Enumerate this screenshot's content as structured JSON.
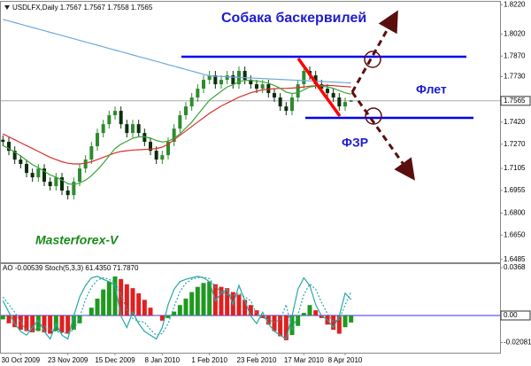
{
  "chart_data": [
    {
      "type": "candlestick",
      "title": "USDLFX,Daily  1.7567 1.7567 1.7558 1.7565",
      "annotations": [
        "Собака баскервилей",
        "Флет",
        "ФЗР",
        "Masterforex-V"
      ],
      "categories": [
        null,
        null,
        null,
        "30 Oct 2009",
        null,
        null,
        null,
        null,
        null,
        null,
        null,
        "23 Nov 2009",
        null,
        null,
        null,
        null,
        null,
        null,
        null,
        "15 Dec 2009",
        null,
        null,
        null,
        null,
        null,
        null,
        null,
        "8 Jan 2010",
        null,
        null,
        null,
        null,
        null,
        null,
        null,
        "1 Feb 2010",
        null,
        null,
        null,
        null,
        null,
        null,
        null,
        "23 Feb 2010",
        null,
        null,
        null,
        null,
        null,
        null,
        null,
        "17 Mar 2010",
        null,
        null,
        null,
        null,
        null,
        null,
        "8 Apr 2010",
        null
      ],
      "open": [
        1.73,
        1.7286,
        1.7225,
        1.7165,
        1.7135,
        1.7074,
        1.7044,
        1.7104,
        1.7014,
        1.6984,
        1.7044,
        1.6954,
        1.6923,
        1.7014,
        1.7104,
        1.7165,
        1.7256,
        1.7346,
        1.7406,
        1.7467,
        1.7497,
        1.7406,
        1.7346,
        1.7406,
        1.7346,
        1.7286,
        1.7225,
        1.7165,
        1.7195,
        1.7286,
        1.7376,
        1.7467,
        1.7527,
        1.7588,
        1.7648,
        1.7708,
        1.7739,
        1.7678,
        1.7708,
        1.7739,
        1.7678,
        1.7769,
        1.7708,
        1.7678,
        1.7648,
        1.7678,
        1.7618,
        1.7588,
        1.7527,
        1.7497,
        1.7588,
        1.7678,
        1.7769,
        1.7739,
        1.7678,
        1.7648,
        1.7618,
        1.7588,
        1.7527,
        1.7567
      ],
      "high": [
        1.733,
        1.7316,
        1.7255,
        1.7195,
        1.7165,
        1.7104,
        1.7134,
        1.7134,
        1.7044,
        1.7074,
        1.7074,
        1.6984,
        1.7044,
        1.7134,
        1.7195,
        1.7286,
        1.7376,
        1.7436,
        1.7497,
        1.7527,
        1.7527,
        1.7436,
        1.7436,
        1.7436,
        1.7376,
        1.7316,
        1.7255,
        1.7225,
        1.7316,
        1.7406,
        1.7497,
        1.7557,
        1.7618,
        1.7678,
        1.7738,
        1.7769,
        1.7769,
        1.7738,
        1.7769,
        1.7769,
        1.7799,
        1.7799,
        1.7738,
        1.7708,
        1.7708,
        1.7708,
        1.7648,
        1.7618,
        1.7557,
        1.7618,
        1.7708,
        1.7799,
        1.7799,
        1.7769,
        1.7708,
        1.7678,
        1.7648,
        1.7618,
        1.7587,
        1.7567
      ],
      "low": [
        1.7256,
        1.7195,
        1.7135,
        1.7105,
        1.7044,
        1.7014,
        1.7014,
        1.6984,
        1.6954,
        1.6954,
        1.6924,
        1.6893,
        1.6893,
        1.6984,
        1.7074,
        1.7135,
        1.7226,
        1.7316,
        1.7376,
        1.7437,
        1.7376,
        1.7316,
        1.7316,
        1.7316,
        1.7256,
        1.7195,
        1.7135,
        1.7135,
        1.7165,
        1.7256,
        1.7346,
        1.7437,
        1.7497,
        1.7558,
        1.7618,
        1.7678,
        1.7648,
        1.7648,
        1.7678,
        1.7648,
        1.7648,
        1.7678,
        1.7648,
        1.7618,
        1.7618,
        1.7588,
        1.7558,
        1.7497,
        1.7467,
        1.7467,
        1.7558,
        1.7648,
        1.7709,
        1.7648,
        1.7618,
        1.7588,
        1.7558,
        1.7497,
        1.7497,
        1.7558
      ],
      "close": [
        1.7286,
        1.7225,
        1.7165,
        1.7135,
        1.7074,
        1.7044,
        1.7104,
        1.7014,
        1.6984,
        1.7044,
        1.6954,
        1.6923,
        1.7014,
        1.7104,
        1.7165,
        1.7256,
        1.7346,
        1.7406,
        1.7467,
        1.7497,
        1.7406,
        1.7346,
        1.7406,
        1.7346,
        1.7286,
        1.7225,
        1.7165,
        1.7195,
        1.7286,
        1.7376,
        1.7467,
        1.7527,
        1.7588,
        1.7648,
        1.7708,
        1.7739,
        1.7678,
        1.7708,
        1.7739,
        1.7678,
        1.7769,
        1.7708,
        1.7678,
        1.7648,
        1.7678,
        1.7618,
        1.7588,
        1.7527,
        1.7497,
        1.7588,
        1.7678,
        1.7769,
        1.7739,
        1.7678,
        1.7648,
        1.7618,
        1.7588,
        1.7527,
        1.7557,
        1.7565
      ],
      "up_color": "#2e8b2e",
      "down_color": "#0b2e0b",
      "series": [
        {
          "color": "#6fa8dc",
          "values": [
            1.812,
            1.8109,
            1.8098,
            1.8087,
            1.8076,
            1.8065,
            1.8054,
            1.8043,
            1.8032,
            1.8021,
            1.801,
            1.7999,
            1.7988,
            1.7977,
            1.7966,
            1.7955,
            1.7944,
            1.7933,
            1.7922,
            1.7911,
            1.79,
            1.7889,
            1.7878,
            1.7867,
            1.7856,
            1.7845,
            1.7834,
            1.7823,
            1.7812,
            1.7801,
            1.779,
            1.7779,
            1.7768,
            1.7757,
            1.7746,
            1.7735,
            1.7733,
            1.7731,
            1.7729,
            1.7727,
            1.7725,
            1.7723,
            1.7721,
            1.7719,
            1.7717,
            1.7715,
            1.7713,
            1.7711,
            1.7709,
            1.7707,
            1.7705,
            1.7703,
            1.7701,
            1.7699,
            1.7697,
            1.7695,
            1.7693,
            1.7691,
            1.7689,
            1.7687
          ]
        },
        {
          "color": "#d9302c",
          "values": [
            1.734,
            1.732,
            1.73,
            1.728,
            1.726,
            1.724,
            1.722,
            1.72,
            1.718,
            1.7165,
            1.715,
            1.714,
            1.7135,
            1.7135,
            1.714,
            1.715,
            1.7165,
            1.718,
            1.7195,
            1.721,
            1.722,
            1.7225,
            1.723,
            1.7232,
            1.7234,
            1.7236,
            1.724,
            1.725,
            1.727,
            1.73,
            1.733,
            1.736,
            1.739,
            1.742,
            1.745,
            1.748,
            1.7505,
            1.753,
            1.755,
            1.757,
            1.759,
            1.7605,
            1.762,
            1.763,
            1.764,
            1.7645,
            1.7648,
            1.765,
            1.765,
            1.7652,
            1.7655,
            1.766,
            1.7665,
            1.7668,
            1.767,
            1.767,
            1.7668,
            1.7665,
            1.7662,
            1.766
          ]
        },
        {
          "color": "#3aa63a",
          "values": [
            1.726,
            1.724,
            1.7215,
            1.719,
            1.716,
            1.713,
            1.711,
            1.7085,
            1.706,
            1.7045,
            1.7025,
            1.7,
            1.6995,
            1.7005,
            1.7025,
            1.7055,
            1.7095,
            1.714,
            1.719,
            1.724,
            1.727,
            1.729,
            1.731,
            1.732,
            1.732,
            1.731,
            1.7295,
            1.7285,
            1.729,
            1.731,
            1.734,
            1.738,
            1.742,
            1.747,
            1.752,
            1.757,
            1.76,
            1.763,
            1.766,
            1.7675,
            1.7695,
            1.7705,
            1.7705,
            1.77,
            1.7695,
            1.7685,
            1.767,
            1.765,
            1.7625,
            1.7615,
            1.762,
            1.764,
            1.766,
            1.7665,
            1.7665,
            1.766,
            1.765,
            1.7635,
            1.762,
            1.761
          ]
        }
      ],
      "ylim": [
        1.6465,
        1.824
      ],
      "yticks": [
        {
          "value": 1.822,
          "label": "1.8220"
        },
        {
          "value": 1.802,
          "label": "1.8020"
        },
        {
          "value": 1.787,
          "label": "1.7870"
        },
        {
          "value": 1.773,
          "label": "1.7730"
        },
        1.7565,
        {
          "value": 1.742,
          "label": "1.7420"
        },
        {
          "value": 1.727,
          "label": "1.7270"
        },
        1.7105,
        1.6955,
        {
          "value": 1.68,
          "label": "1.6800"
        },
        {
          "value": 1.665,
          "label": "1.6650"
        },
        1.6485
      ]
    },
    {
      "type": "bar",
      "title": "AO -0.00539  Stoch(5,3,3) 61.4350  71.7870",
      "series": [
        {
          "up_color": "#1f9a1f",
          "down_color": "#e02020",
          "values": [
            -0.003,
            -0.006,
            -0.009,
            -0.011,
            -0.012,
            -0.013,
            -0.012,
            -0.013,
            -0.014,
            -0.012,
            -0.013,
            -0.014,
            -0.011,
            -0.006,
            0.0,
            0.006,
            0.013,
            0.02,
            0.026,
            0.03,
            0.028,
            0.024,
            0.021,
            0.017,
            0.012,
            0.006,
            0.0,
            -0.004,
            -0.002,
            0.003,
            0.008,
            0.013,
            0.018,
            0.022,
            0.025,
            0.026,
            0.024,
            0.022,
            0.021,
            0.018,
            0.016,
            0.012,
            0.008,
            0.004,
            -0.002,
            -0.007,
            -0.012,
            -0.016,
            -0.019,
            -0.015,
            -0.008,
            0.002,
            0.008,
            0.004,
            -0.002,
            -0.007,
            -0.011,
            -0.014,
            -0.009,
            -0.0054
          ]
        },
        {
          "type": "line",
          "axis": "y2",
          "color": "#2aa6a6",
          "values": [
            60,
            45,
            30,
            20,
            15,
            25,
            35,
            20,
            10,
            30,
            15,
            10,
            40,
            65,
            80,
            90,
            92,
            88,
            85,
            80,
            40,
            25,
            45,
            30,
            20,
            15,
            10,
            25,
            55,
            75,
            85,
            88,
            90,
            92,
            90,
            85,
            60,
            70,
            75,
            55,
            80,
            60,
            40,
            30,
            45,
            30,
            20,
            15,
            10,
            40,
            75,
            90,
            80,
            55,
            40,
            35,
            25,
            40,
            70,
            61.435
          ]
        },
        {
          "type": "line",
          "axis": "y2",
          "color": "#2aa6a6",
          "dash": true,
          "values": [
            65,
            55,
            45,
            32,
            22,
            20,
            25,
            27,
            22,
            20,
            18,
            18,
            22,
            38,
            62,
            78,
            87,
            90,
            88,
            84,
            68,
            48,
            37,
            33,
            32,
            22,
            15,
            17,
            30,
            52,
            72,
            83,
            88,
            90,
            91,
            89,
            78,
            72,
            68,
            67,
            70,
            65,
            60,
            43,
            38,
            35,
            32,
            35,
            55,
            22,
            42,
            68,
            82,
            75,
            58,
            43,
            33,
            35,
            55,
            71.787
          ]
        }
      ],
      "ylim": [
        -0.0286,
        0.0395
      ],
      "yticks": [
        0.0368,
        {
          "value": 0,
          "label": "0.00"
        },
        -0.02081
      ],
      "y2lim": [
        -8,
        108
      ]
    }
  ]
}
